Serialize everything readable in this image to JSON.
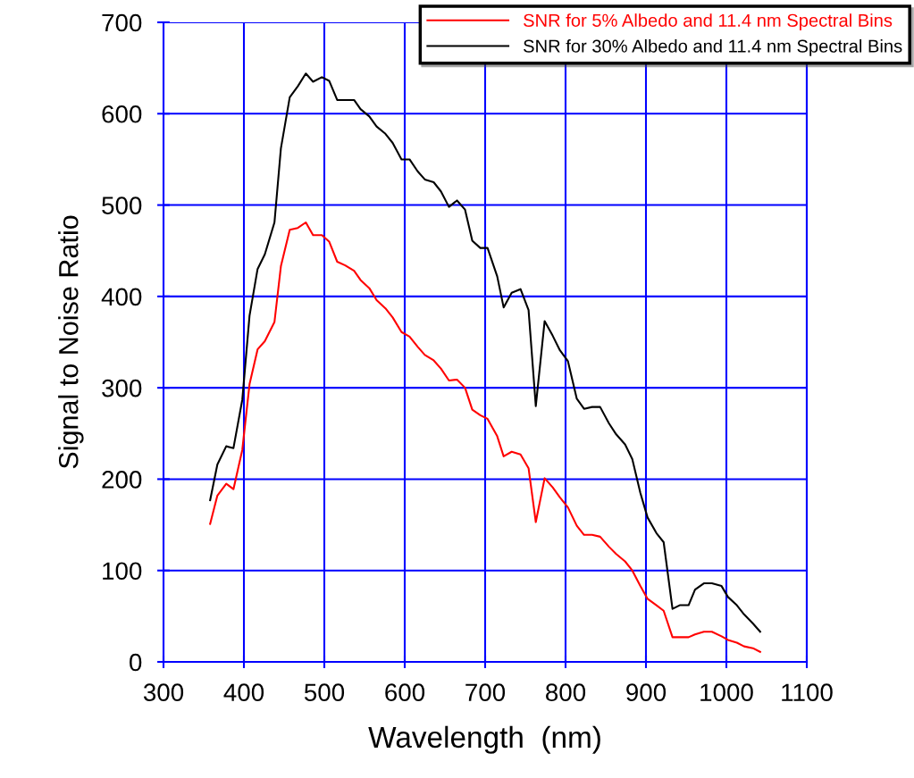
{
  "chart_data": {
    "type": "line",
    "xlabel": "Wavelength  (nm)",
    "ylabel": "Signal to Noise Ratio",
    "x": [
      358,
      367,
      378,
      387,
      398,
      407,
      417,
      426,
      438,
      446,
      457,
      467,
      477,
      486,
      497,
      506,
      516,
      526,
      537,
      545,
      556,
      565,
      576,
      585,
      596,
      606,
      616,
      625,
      636,
      645,
      655,
      665,
      675,
      684,
      694,
      703,
      715,
      723,
      733,
      744,
      754,
      763,
      774,
      784,
      793,
      803,
      814,
      823,
      833,
      843,
      854,
      863,
      874,
      883,
      893,
      902,
      913,
      922,
      933,
      942,
      953,
      961,
      972,
      982,
      994,
      1002,
      1013,
      1022,
      1033,
      1042
    ],
    "series": [
      {
        "name": "SNR for 5% Albedo and 11.4 nm Spectral Bins",
        "color": "#ff0000",
        "values": [
          151,
          182,
          195,
          189,
          232,
          304,
          342,
          351,
          372,
          433,
          473,
          475,
          481,
          467,
          467,
          460,
          438,
          434,
          428,
          418,
          409,
          396,
          387,
          377,
          361,
          356,
          345,
          336,
          330,
          321,
          308,
          309,
          300,
          276,
          270,
          266,
          247,
          225,
          230,
          227,
          212,
          153,
          201,
          191,
          180,
          169,
          149,
          139,
          139,
          137,
          126,
          118,
          110,
          100,
          83,
          69,
          62,
          56,
          27,
          27,
          27,
          30,
          33,
          33,
          28,
          24,
          21,
          17,
          15,
          11
        ]
      },
      {
        "name": "SNR for 30% Albedo and 11.4 nm Spectral Bins",
        "color": "#000000",
        "values": [
          177,
          216,
          236,
          234,
          287,
          379,
          430,
          446,
          481,
          562,
          618,
          630,
          644,
          635,
          640,
          636,
          615,
          615,
          615,
          605,
          597,
          586,
          578,
          568,
          550,
          550,
          537,
          528,
          525,
          515,
          498,
          505,
          495,
          461,
          453,
          453,
          422,
          388,
          404,
          408,
          385,
          280,
          373,
          357,
          341,
          329,
          288,
          277,
          279,
          279,
          261,
          249,
          238,
          222,
          185,
          158,
          141,
          131,
          58,
          62,
          62,
          79,
          86,
          86,
          83,
          71,
          62,
          52,
          42,
          33
        ]
      }
    ],
    "xlim": [
      300,
      1100
    ],
    "xticks": [
      300,
      400,
      500,
      600,
      700,
      800,
      900,
      1000,
      1100
    ],
    "ylim": [
      0,
      700
    ],
    "yticks": [
      0,
      100,
      200,
      300,
      400,
      500,
      600,
      700
    ],
    "grid": true,
    "legend": "top right"
  }
}
